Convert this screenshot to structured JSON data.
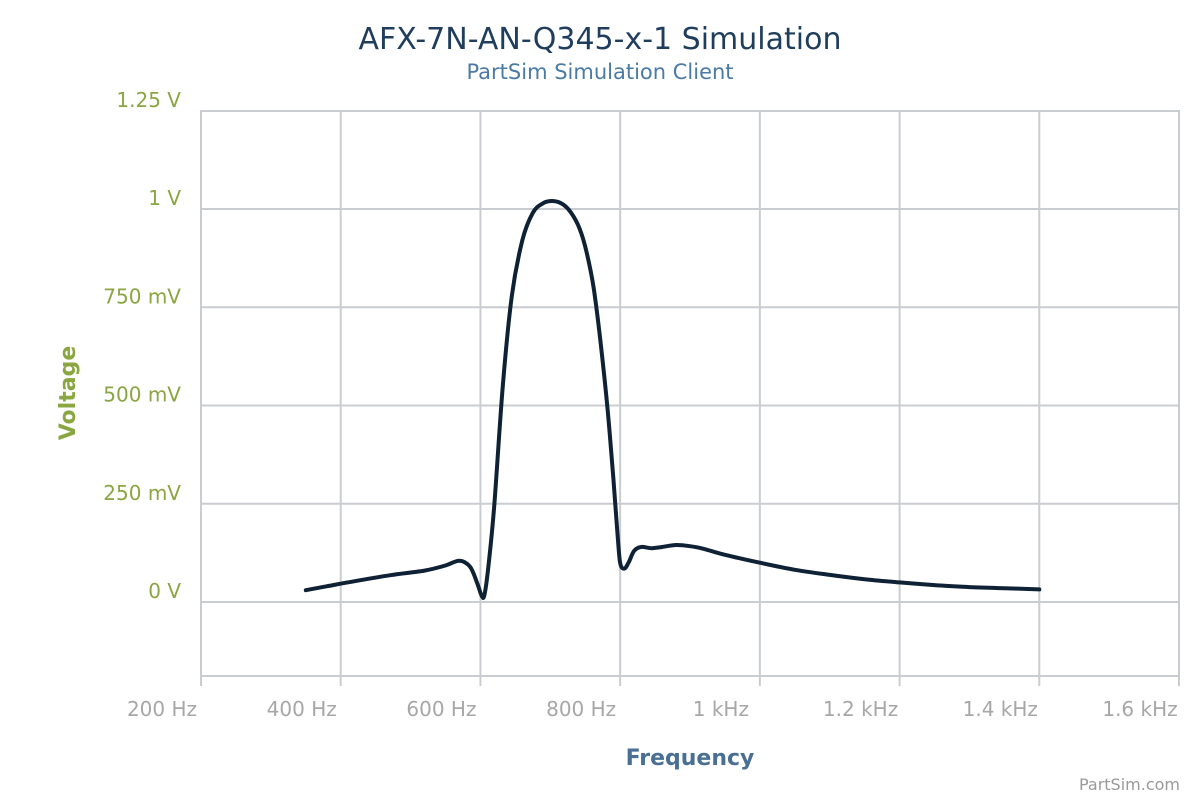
{
  "chart_data": {
    "type": "line",
    "title": "AFX-7N-AN-Q345-x-1 Simulation",
    "subtitle": "PartSim Simulation Client",
    "xlabel": "Frequency",
    "ylabel": "Voltage",
    "credit": "PartSim.com",
    "xlim": [
      200,
      1600
    ],
    "ylim": [
      -0.15,
      1.25
    ],
    "x_ticks": [
      {
        "value": 200,
        "label": "200 Hz"
      },
      {
        "value": 400,
        "label": "400 Hz"
      },
      {
        "value": 600,
        "label": "600 Hz"
      },
      {
        "value": 800,
        "label": "800 Hz"
      },
      {
        "value": 1000,
        "label": "1 kHz"
      },
      {
        "value": 1200,
        "label": "1.2 kHz"
      },
      {
        "value": 1400,
        "label": "1.4 kHz"
      },
      {
        "value": 1600,
        "label": "1.6 kHz"
      }
    ],
    "y_ticks": [
      {
        "value": 0,
        "label": "0 V"
      },
      {
        "value": 0.25,
        "label": "250 mV"
      },
      {
        "value": 0.5,
        "label": "500 mV"
      },
      {
        "value": 0.75,
        "label": "750 mV"
      },
      {
        "value": 1.0,
        "label": "1 V"
      },
      {
        "value": 1.25,
        "label": "1.25 V"
      }
    ],
    "grid": true,
    "legend": "none",
    "colors": {
      "series": "#0f2235",
      "title": "#1f3d5c",
      "subtitle": "#4a7aa6",
      "ylabels": "#8aa640",
      "xlabels": "#a7a7a7",
      "grid": "#c9cdd1"
    },
    "series": [
      {
        "x": [
          350,
          380,
          420,
          470,
          520,
          550,
          570,
          585,
          595,
          602,
          606,
          612,
          620,
          632,
          645,
          660,
          675,
          690,
          705,
          718,
          730,
          742,
          752,
          762,
          772,
          782,
          790,
          796,
          800,
          806,
          812,
          820,
          830,
          845,
          860,
          880,
          900,
          920,
          950,
          1000,
          1050,
          1100,
          1150,
          1200,
          1250,
          1300,
          1350,
          1400
        ],
        "y": [
          0.03,
          0.04,
          0.053,
          0.068,
          0.08,
          0.093,
          0.105,
          0.09,
          0.05,
          0.015,
          0.02,
          0.1,
          0.25,
          0.55,
          0.78,
          0.92,
          0.99,
          1.015,
          1.02,
          1.012,
          0.99,
          0.95,
          0.89,
          0.8,
          0.66,
          0.49,
          0.32,
          0.18,
          0.1,
          0.085,
          0.1,
          0.13,
          0.14,
          0.137,
          0.14,
          0.145,
          0.142,
          0.135,
          0.12,
          0.1,
          0.082,
          0.069,
          0.058,
          0.05,
          0.043,
          0.038,
          0.035,
          0.032
        ]
      }
    ]
  }
}
